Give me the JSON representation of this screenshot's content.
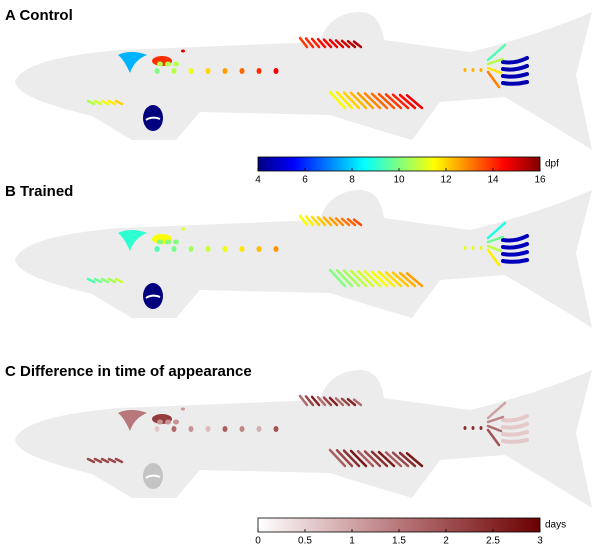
{
  "panels": [
    {
      "title": "A Control",
      "colorbar": {
        "lim": [
          4,
          16
        ],
        "ticks": [
          4,
          6,
          8,
          10,
          12,
          14,
          16
        ],
        "unit": "dpf",
        "colormap": "jet"
      }
    },
    {
      "title": "B Trained"
    },
    {
      "title": "C Difference in time of appearance",
      "colorbar": {
        "lim": [
          0,
          3
        ],
        "ticks": [
          0,
          0.5,
          1,
          1.5,
          2,
          2.5,
          3
        ],
        "unit": "days",
        "colormap": "reds"
      }
    }
  ]
}
